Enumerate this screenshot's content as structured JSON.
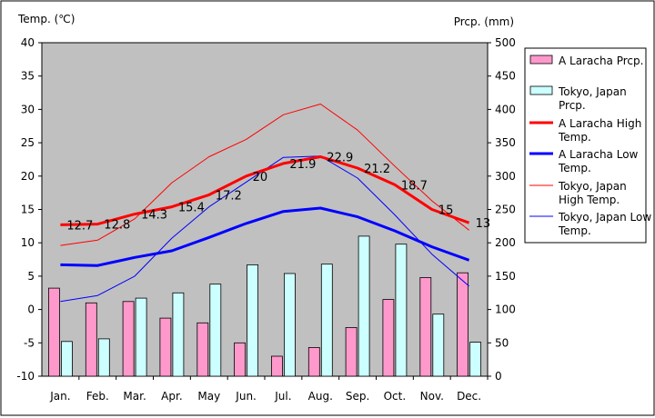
{
  "chart_data": {
    "type": "bar+line",
    "title": "",
    "ylabel_left": "Temp. (℃)",
    "ylabel_right": "Prcp. (mm)",
    "ylim_left": [
      -10,
      40
    ],
    "ylim_right": [
      0,
      500
    ],
    "yticks_left": [
      "40",
      "35",
      "30",
      "25",
      "20",
      "15",
      "10",
      "5",
      "0",
      "-5",
      "-10"
    ],
    "yticks_right": [
      "500",
      "450",
      "400",
      "350",
      "300",
      "250",
      "200",
      "150",
      "100",
      "50",
      "0"
    ],
    "categories": [
      "Jan.",
      "Feb.",
      "Mar.",
      "Apr.",
      "May",
      "Jun.",
      "Jul.",
      "Aug.",
      "Sep.",
      "Oct.",
      "Nov.",
      "Dec."
    ],
    "grid": false,
    "legend_position": "right",
    "bar_series": [
      {
        "name": "A Laracha Prcp.",
        "color": "#ff99cc",
        "values": [
          132,
          110,
          112,
          87,
          80,
          50,
          30,
          43,
          73,
          115,
          148,
          155
        ]
      },
      {
        "name": "Tokyo, Japan Prcp.",
        "color": "#ccffff",
        "values": [
          52,
          56,
          117,
          125,
          138,
          167,
          154,
          168,
          210,
          198,
          93,
          51
        ]
      }
    ],
    "line_series": [
      {
        "name": "A Laracha High Temp.",
        "color": "#ff0000",
        "width": 3,
        "values": [
          12.7,
          12.8,
          14.3,
          15.4,
          17.2,
          20,
          21.9,
          22.9,
          21.2,
          18.7,
          15,
          13
        ],
        "labels": [
          "12.7",
          "12.8",
          "14.3",
          "15.4",
          "17.2",
          "20",
          "21.9",
          "22.9",
          "21.2",
          "18.7",
          "15",
          "13"
        ]
      },
      {
        "name": "A Laracha Low Temp.",
        "color": "#0000ff",
        "width": 3,
        "values": [
          6.7,
          6.6,
          7.8,
          8.8,
          10.8,
          12.9,
          14.7,
          15.2,
          13.9,
          11.8,
          9.4,
          7.4
        ]
      },
      {
        "name": "Tokyo, Japan High Temp.",
        "color": "#ff0000",
        "width": 1,
        "values": [
          9.6,
          10.4,
          13.6,
          19.0,
          22.9,
          25.5,
          29.2,
          30.8,
          26.9,
          21.5,
          16.3,
          11.9
        ]
      },
      {
        "name": "Tokyo, Japan Low Temp.",
        "color": "#0000ff",
        "width": 1,
        "values": [
          1.2,
          2.1,
          5.0,
          10.7,
          15.4,
          19.1,
          22.8,
          23.0,
          19.7,
          14.2,
          8.3,
          3.5
        ]
      }
    ]
  }
}
